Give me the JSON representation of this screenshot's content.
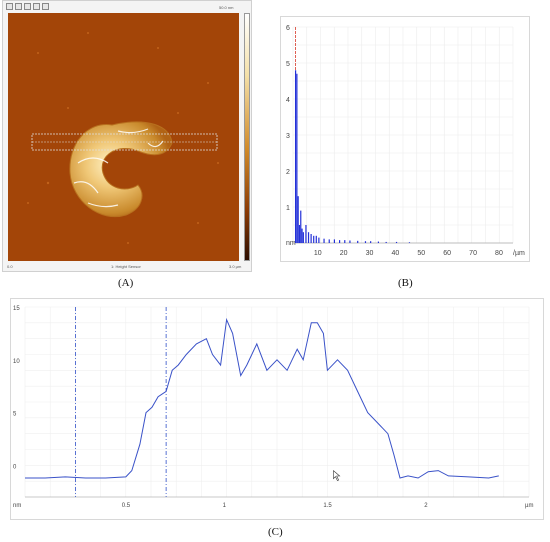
{
  "panels": {
    "a": "(A)",
    "b": "(B)",
    "c": "(C)"
  },
  "afm": {
    "scale_top": "50.0 nm",
    "axis_left": "0.0",
    "axis_center": "1: Height Sensor",
    "axis_right": "3.0 µm",
    "colors": {
      "background": "#a34508",
      "feature": "#f3d9a0"
    },
    "icons": [
      "select-tool-icon",
      "zoom-tool-icon",
      "pan-tool-icon",
      "save-icon",
      "color-icon"
    ]
  },
  "histogram": {
    "y_unit": "nm",
    "x_unit": "/µm",
    "y_ticks": [
      "1",
      "2",
      "3",
      "4",
      "5",
      "6"
    ],
    "x_ticks": [
      "10",
      "20",
      "30",
      "40",
      "50",
      "60",
      "70",
      "80"
    ]
  },
  "profile": {
    "y_unit": "nm",
    "x_unit": "µm",
    "y_ticks": [
      "0",
      "5",
      "10",
      "15"
    ],
    "x_ticks": [
      "0.5",
      "1",
      "1.5",
      "2"
    ]
  },
  "chart_data": [
    {
      "type": "bar",
      "title": "",
      "ylabel": "nm",
      "xlabel": "/µm",
      "xlim": [
        0,
        85
      ],
      "ylim": [
        0,
        6
      ],
      "x": [
        1,
        1.5,
        2,
        2.5,
        3,
        3.5,
        4,
        5,
        6,
        7,
        8,
        9,
        10,
        12,
        14,
        16,
        18,
        20,
        22,
        25,
        28,
        30,
        33,
        36,
        40,
        45
      ],
      "values": [
        4.8,
        4.7,
        1.3,
        0.5,
        0.9,
        0.4,
        0.3,
        0.5,
        0.3,
        0.25,
        0.2,
        0.2,
        0.15,
        0.12,
        0.1,
        0.1,
        0.08,
        0.08,
        0.07,
        0.06,
        0.05,
        0.05,
        0.04,
        0.03,
        0.03,
        0.02
      ],
      "marker_x": 1
    },
    {
      "type": "line",
      "title": "",
      "ylabel": "nm",
      "xlabel": "µm",
      "xlim": [
        0,
        2.5
      ],
      "ylim": [
        -3,
        15
      ],
      "x": [
        0,
        0.1,
        0.2,
        0.3,
        0.4,
        0.5,
        0.53,
        0.57,
        0.6,
        0.63,
        0.66,
        0.7,
        0.73,
        0.76,
        0.8,
        0.85,
        0.9,
        0.93,
        0.97,
        1.0,
        1.03,
        1.07,
        1.1,
        1.15,
        1.2,
        1.25,
        1.3,
        1.35,
        1.38,
        1.42,
        1.45,
        1.48,
        1.5,
        1.55,
        1.6,
        1.65,
        1.7,
        1.75,
        1.8,
        1.83,
        1.86,
        1.9,
        1.95,
        2.0,
        2.05,
        2.1,
        2.2,
        2.3,
        2.35
      ],
      "y": [
        -1.2,
        -1.2,
        -1.1,
        -1.2,
        -1.2,
        -1.1,
        -0.5,
        2.0,
        5.0,
        5.5,
        6.5,
        7.0,
        9.0,
        9.5,
        10.5,
        11.5,
        12.0,
        10.5,
        9.5,
        13.8,
        12.5,
        8.5,
        9.5,
        11.5,
        9.0,
        10.0,
        9.0,
        11.0,
        10.0,
        13.5,
        13.5,
        12.5,
        9.0,
        10.0,
        9.0,
        7.0,
        5.0,
        4.0,
        3.0,
        1.0,
        -1.2,
        -1.0,
        -1.2,
        -0.6,
        -0.5,
        -1.0,
        -1.1,
        -1.2,
        -1.0
      ],
      "markers": [
        0.25,
        0.7
      ]
    }
  ]
}
